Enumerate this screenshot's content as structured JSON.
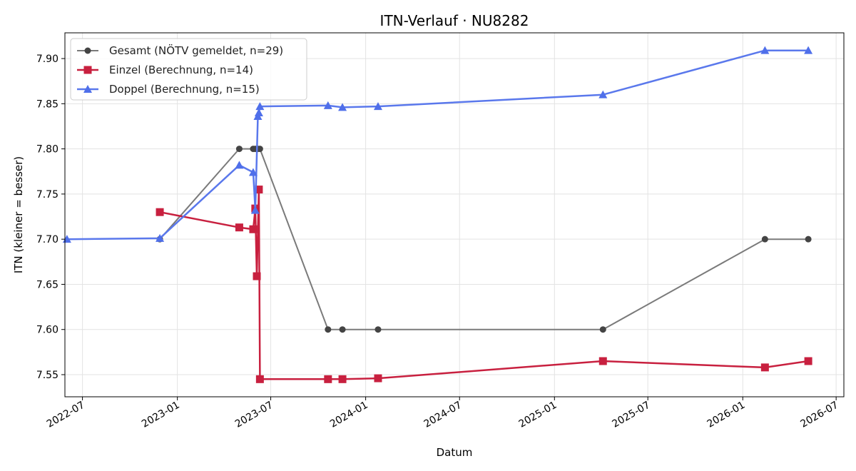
{
  "chart_data": {
    "type": "line",
    "title": "ITN-Verlauf · NU8282",
    "xlabel": "Datum",
    "ylabel": "ITN  (kleiner = besser)",
    "x_ticks": [
      "2022-07",
      "2023-01",
      "2023-07",
      "2024-01",
      "2024-07",
      "2025-01",
      "2025-07",
      "2026-01",
      "2026-07"
    ],
    "y_ticks": [
      "7.55",
      "7.60",
      "7.65",
      "7.70",
      "7.75",
      "7.80",
      "7.85",
      "7.90"
    ],
    "xlim": [
      "2022-05-28",
      "2026-07-16"
    ],
    "ylim": [
      7.5255,
      7.9285
    ],
    "grid": true,
    "legend_position": "top-left",
    "series": [
      {
        "name": "Gesamt (NÖTV gemeldet, n=29)",
        "color": "#444444",
        "line_color": "#7a7a7a",
        "marker": "circle",
        "points": [
          {
            "x": "2022-11-28",
            "y": 7.7
          },
          {
            "x": "2023-05-01",
            "y": 7.8
          },
          {
            "x": "2023-05-28",
            "y": 7.8
          },
          {
            "x": "2023-06-01",
            "y": 7.8
          },
          {
            "x": "2023-06-06",
            "y": 7.8
          },
          {
            "x": "2023-06-10",
            "y": 7.8
          },
          {
            "x": "2023-10-20",
            "y": 7.6
          },
          {
            "x": "2023-11-17",
            "y": 7.6
          },
          {
            "x": "2024-01-25",
            "y": 7.6
          },
          {
            "x": "2025-04-05",
            "y": 7.6
          },
          {
            "x": "2026-02-13",
            "y": 7.7
          },
          {
            "x": "2026-05-08",
            "y": 7.7
          }
        ]
      },
      {
        "name": "Einzel (Berechnung, n=14)",
        "color": "#c8203f",
        "line_color": "#c8203f",
        "marker": "square",
        "points": [
          {
            "x": "2022-11-28",
            "y": 7.73
          },
          {
            "x": "2023-05-01",
            "y": 7.713
          },
          {
            "x": "2023-05-28",
            "y": 7.711
          },
          {
            "x": "2023-06-01",
            "y": 7.734
          },
          {
            "x": "2023-06-04",
            "y": 7.659
          },
          {
            "x": "2023-06-08",
            "y": 7.755
          },
          {
            "x": "2023-06-10",
            "y": 7.545
          },
          {
            "x": "2023-10-20",
            "y": 7.545
          },
          {
            "x": "2023-11-17",
            "y": 7.545
          },
          {
            "x": "2024-01-25",
            "y": 7.546
          },
          {
            "x": "2025-04-05",
            "y": 7.565
          },
          {
            "x": "2026-02-13",
            "y": 7.558
          },
          {
            "x": "2026-05-08",
            "y": 7.565
          }
        ]
      },
      {
        "name": "Doppel (Berechnung, n=15)",
        "color": "#4f6fea",
        "line_color": "#5a78ec",
        "marker": "triangle",
        "points": [
          {
            "x": "2022-06-01",
            "y": 7.7
          },
          {
            "x": "2022-11-28",
            "y": 7.701
          },
          {
            "x": "2023-05-01",
            "y": 7.782
          },
          {
            "x": "2023-05-28",
            "y": 7.774
          },
          {
            "x": "2023-06-01",
            "y": 7.732
          },
          {
            "x": "2023-06-06",
            "y": 7.836
          },
          {
            "x": "2023-06-08",
            "y": 7.84
          },
          {
            "x": "2023-06-10",
            "y": 7.847
          },
          {
            "x": "2023-10-20",
            "y": 7.848
          },
          {
            "x": "2023-11-17",
            "y": 7.846
          },
          {
            "x": "2024-01-25",
            "y": 7.847
          },
          {
            "x": "2025-04-05",
            "y": 7.86
          },
          {
            "x": "2026-02-13",
            "y": 7.909
          },
          {
            "x": "2026-05-08",
            "y": 7.909
          }
        ]
      }
    ]
  }
}
